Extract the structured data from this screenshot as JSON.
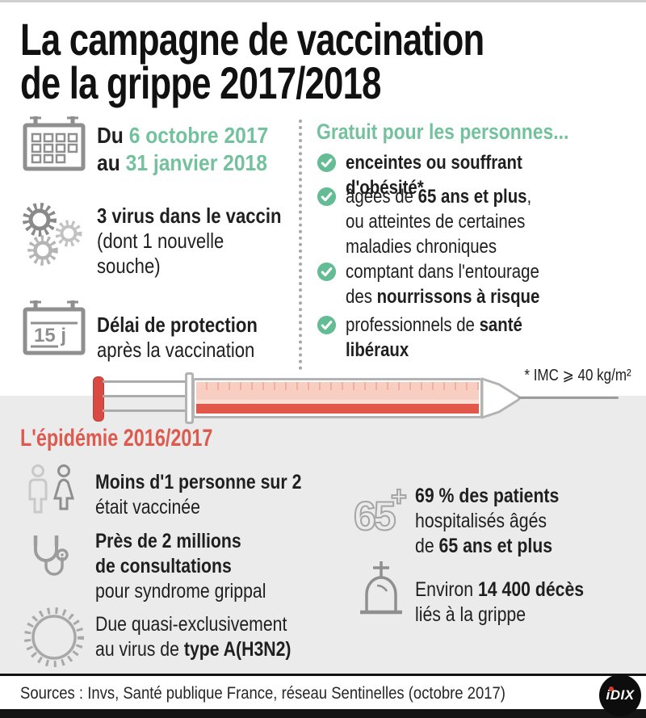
{
  "colors": {
    "green": "#73C29D",
    "check_green": "#63BC93",
    "red": "#DC5A4E",
    "syringe_red": "#D84A42",
    "section_gray": "#EBEBEB",
    "ink": "#1F1F1F"
  },
  "title": {
    "text": "La campagne de vaccination\nde la grippe 2017/2018"
  },
  "campaign": {
    "dates": {
      "icon": "calendar-icon",
      "segments": [
        {
          "t": "Du ",
          "b": true
        },
        {
          "t": "6 octobre 2017",
          "b": true,
          "c": "green"
        },
        {
          "t": "\nau ",
          "b": true
        },
        {
          "t": "31 janvier 2018",
          "b": true,
          "c": "green"
        }
      ]
    },
    "virus": {
      "icon": "virus-gears-icon",
      "segments": [
        {
          "t": "3 virus dans le vaccin",
          "b": true
        },
        {
          "t": "\n(dont 1 nouvelle\nsouche)"
        }
      ]
    },
    "delay": {
      "icon": "calendar-15d-icon",
      "icon_label": "15 j",
      "segments": [
        {
          "t": "Délai de protection",
          "b": true
        },
        {
          "t": "\naprès la vaccination"
        }
      ]
    }
  },
  "free": {
    "heading": "Gratuit pour les personnes...",
    "items": [
      {
        "segments": [
          {
            "t": "enceintes ou souffrant d'obésité*",
            "b": true
          }
        ]
      },
      {
        "segments": [
          {
            "t": "âgées de "
          },
          {
            "t": "65 ans et plus",
            "b": true
          },
          {
            "t": ",\nou atteintes de certaines\nmaladies chroniques"
          }
        ]
      },
      {
        "segments": [
          {
            "t": "comptant dans l'entourage\ndes "
          },
          {
            "t": "nourrissons à risque",
            "b": true
          }
        ]
      },
      {
        "segments": [
          {
            "t": "professionnels de "
          },
          {
            "t": "santé\nlibéraux",
            "b": true
          }
        ]
      }
    ]
  },
  "imc_note": "* IMC ⩾ 40 kg/m²",
  "epidemic": {
    "heading": "L'épidémie 2016/2017",
    "stats": [
      {
        "icon": "man-woman-icon",
        "segments": [
          {
            "t": "Moins d'1 personne sur 2",
            "b": true
          },
          {
            "t": "\nétait vaccinée"
          }
        ]
      },
      {
        "icon": "stethoscope-icon",
        "segments": [
          {
            "t": "Près de 2 millions\nde consultations",
            "b": true
          },
          {
            "t": "\npour syndrome grippal"
          }
        ]
      },
      {
        "icon": "virus-icon",
        "segments": [
          {
            "t": "Due quasi-exclusivement\nau virus de "
          },
          {
            "t": "type A(H3N2)",
            "b": true
          }
        ]
      },
      {
        "icon": "senior-65plus-icon",
        "icon_main": "65",
        "icon_plus": "+",
        "segments": [
          {
            "t": "69 % des patients",
            "b": true
          },
          {
            "t": "\nhospitalisés âgés\nde "
          },
          {
            "t": "65 ans et plus",
            "b": true
          }
        ]
      },
      {
        "icon": "tombstone-icon",
        "segments": [
          {
            "t": "Environ "
          },
          {
            "t": "14 400 décès",
            "b": true
          },
          {
            "t": "\nliés à la grippe"
          }
        ]
      }
    ]
  },
  "footer": {
    "sources": "Sources : Invs, Santé publique France, réseau Sentinelles (octobre 2017)",
    "logo_text": "iDIX"
  }
}
